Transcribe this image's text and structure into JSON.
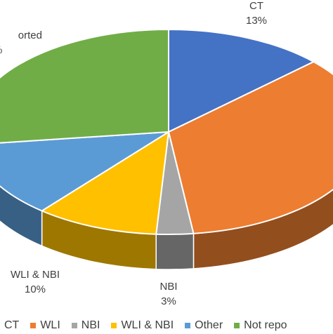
{
  "chart_data": {
    "type": "pie",
    "style": "3d",
    "title": "",
    "categories": [
      "CT",
      "WLI",
      "NBI",
      "WLI & NBI",
      "Other",
      "Not reported"
    ],
    "series": [
      {
        "values": [
          13,
          35,
          3,
          10,
          12,
          27
        ]
      }
    ],
    "colors": [
      "#4472C4",
      "#ED7D31",
      "#A5A5A5",
      "#FFC000",
      "#5B9BD5",
      "#70AD47"
    ],
    "data_labels": [
      {
        "name": "CT",
        "value": "13%"
      },
      {
        "name": "NBI",
        "value": "3%"
      },
      {
        "name": "WLI & NBI",
        "value": "10%"
      },
      {
        "name": "",
        "value": ""
      },
      {
        "name": "orted",
        "value": "%"
      }
    ],
    "legend": {
      "position": "bottom",
      "entries": [
        "CT",
        "WLI",
        "NBI",
        "WLI & NBI",
        "Other",
        "Not repo"
      ]
    }
  }
}
